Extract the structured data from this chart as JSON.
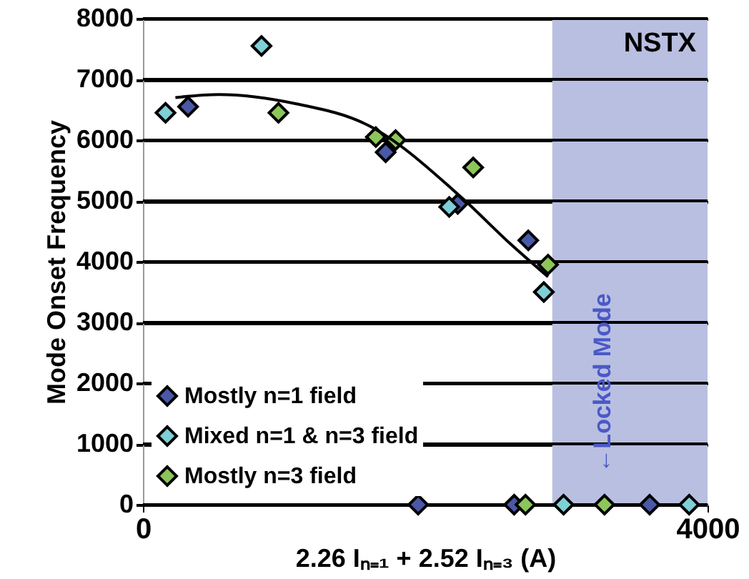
{
  "chart_data": {
    "type": "scatter",
    "xlabel": "2.26 Iₙ₌₁ + 2.52 Iₙ₌₃ (A)",
    "ylabel": "Mode Onset Frequency",
    "xlim": [
      0,
      4000
    ],
    "xticks": [
      0,
      4000
    ],
    "ylim": [
      0,
      8000
    ],
    "yticks": [
      0,
      1000,
      2000,
      3000,
      4000,
      5000,
      6000,
      7000,
      8000
    ],
    "grid": "y",
    "legend": "bottom left",
    "marker": "diamond",
    "series": [
      {
        "name": "Mostly n=1 field",
        "color": "#4a58a8",
        "x": [
          320,
          1720,
          2230,
          2730,
          1950,
          2630,
          3590
        ],
        "values": [
          6550,
          5800,
          4950,
          4350,
          0,
          0,
          0
        ]
      },
      {
        "name": "Mixed n=1 & n=3 field",
        "color": "#7fcfd6",
        "x": [
          160,
          840,
          2170,
          2840,
          2980,
          3870
        ],
        "values": [
          6450,
          7550,
          4900,
          3500,
          0,
          0
        ]
      },
      {
        "name": "Mostly n=3 field",
        "color": "#8cc65a",
        "x": [
          960,
          1650,
          1790,
          2340,
          2710,
          3270,
          2870
        ],
        "values": [
          6450,
          6050,
          6000,
          5550,
          0,
          0,
          3950
        ]
      },
      {
        "type": "line",
        "color": "#000000",
        "marker": "none",
        "x": [
          230,
          540,
          1080,
          1590,
          2260,
          2600,
          2870
        ],
        "values": [
          6700,
          6750,
          6600,
          6250,
          5050,
          4300,
          3750
        ]
      }
    ],
    "bands": [
      {
        "axis": "x",
        "from": 2900,
        "to": 4000,
        "color": "#b9bfe0"
      }
    ],
    "annotations": [
      "NSTX",
      "←Locked Mode"
    ]
  }
}
